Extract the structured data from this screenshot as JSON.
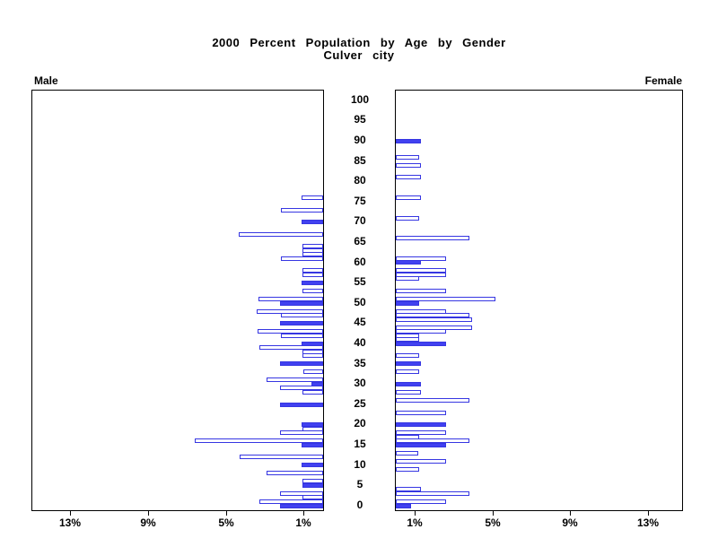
{
  "chart_data": {
    "type": "bar",
    "variant": "population-pyramid",
    "title_line1": "2000 Percent Population by Age by Gender",
    "title_line2": "Culver city",
    "left_panel_label": "Male",
    "right_panel_label": "Female",
    "age_axis": {
      "min": 0,
      "max": 100,
      "step": 5,
      "tick_labels": [
        "0",
        "5",
        "10",
        "15",
        "20",
        "25",
        "30",
        "35",
        "40",
        "45",
        "50",
        "55",
        "60",
        "65",
        "70",
        "75",
        "80",
        "85",
        "90",
        "95",
        "100"
      ]
    },
    "pct_axis": {
      "unit": "%",
      "ticks": [
        1,
        5,
        9,
        13
      ],
      "male_tick_labels": [
        "13%",
        "9%",
        "5%",
        "1%"
      ],
      "female_tick_labels": [
        "1%",
        "5%",
        "9%",
        "13%"
      ],
      "max_pct_shown": 15
    },
    "colors": {
      "bar_fill": "#4141f0",
      "bar_border": "#3636e2",
      "axis": "#000000",
      "background": "#ffffff"
    },
    "fill_rule": "bars at ages divisible by 5 are solid, others hollow",
    "series": [
      {
        "name": "Male",
        "side": "left",
        "points": [
          {
            "age": 0,
            "value": 2.2,
            "filled": true
          },
          {
            "age": 1,
            "value": 3.25,
            "filled": false
          },
          {
            "age": 2,
            "value": 1.05,
            "filled": false
          },
          {
            "age": 3,
            "value": 2.2,
            "filled": false
          },
          {
            "age": 5,
            "value": 1.05,
            "filled": true
          },
          {
            "age": 6,
            "value": 1.05,
            "filled": false
          },
          {
            "age": 8,
            "value": 2.9,
            "filled": false
          },
          {
            "age": 10,
            "value": 1.1,
            "filled": true
          },
          {
            "age": 12,
            "value": 4.3,
            "filled": false
          },
          {
            "age": 15,
            "value": 1.1,
            "filled": true
          },
          {
            "age": 16,
            "value": 6.6,
            "filled": false
          },
          {
            "age": 18,
            "value": 2.2,
            "filled": false
          },
          {
            "age": 19,
            "value": 1.05,
            "filled": false
          },
          {
            "age": 20,
            "value": 1.1,
            "filled": true
          },
          {
            "age": 25,
            "value": 2.2,
            "filled": true
          },
          {
            "age": 28,
            "value": 1.05,
            "filled": false
          },
          {
            "age": 29,
            "value": 2.2,
            "filled": false
          },
          {
            "age": 30,
            "value": 0.6,
            "filled": true
          },
          {
            "age": 31,
            "value": 2.9,
            "filled": false
          },
          {
            "age": 33,
            "value": 1.0,
            "filled": false
          },
          {
            "age": 35,
            "value": 2.2,
            "filled": true
          },
          {
            "age": 37,
            "value": 1.05,
            "filled": false
          },
          {
            "age": 38,
            "value": 1.05,
            "filled": false
          },
          {
            "age": 39,
            "value": 3.25,
            "filled": false
          },
          {
            "age": 40,
            "value": 1.1,
            "filled": true
          },
          {
            "age": 42,
            "value": 2.15,
            "filled": false
          },
          {
            "age": 43,
            "value": 3.35,
            "filled": false
          },
          {
            "age": 45,
            "value": 2.2,
            "filled": true
          },
          {
            "age": 47,
            "value": 2.15,
            "filled": false
          },
          {
            "age": 48,
            "value": 3.4,
            "filled": false
          },
          {
            "age": 50,
            "value": 2.2,
            "filled": true
          },
          {
            "age": 51,
            "value": 3.3,
            "filled": false
          },
          {
            "age": 53,
            "value": 1.05,
            "filled": false
          },
          {
            "age": 55,
            "value": 1.1,
            "filled": true
          },
          {
            "age": 57,
            "value": 1.05,
            "filled": false
          },
          {
            "age": 58,
            "value": 1.05,
            "filled": false
          },
          {
            "age": 61,
            "value": 2.15,
            "filled": false
          },
          {
            "age": 62,
            "value": 1.05,
            "filled": false
          },
          {
            "age": 63,
            "value": 1.05,
            "filled": false
          },
          {
            "age": 64,
            "value": 1.05,
            "filled": false
          },
          {
            "age": 67,
            "value": 4.35,
            "filled": false
          },
          {
            "age": 70,
            "value": 1.1,
            "filled": true
          },
          {
            "age": 73,
            "value": 2.15,
            "filled": false
          },
          {
            "age": 76,
            "value": 1.1,
            "filled": false
          }
        ]
      },
      {
        "name": "Female",
        "side": "right",
        "points": [
          {
            "age": 0,
            "value": 0.8,
            "filled": true
          },
          {
            "age": 1,
            "value": 2.6,
            "filled": false
          },
          {
            "age": 3,
            "value": 3.8,
            "filled": false
          },
          {
            "age": 4,
            "value": 1.3,
            "filled": false
          },
          {
            "age": 9,
            "value": 1.2,
            "filled": false
          },
          {
            "age": 11,
            "value": 2.6,
            "filled": false
          },
          {
            "age": 13,
            "value": 1.15,
            "filled": false
          },
          {
            "age": 15,
            "value": 2.6,
            "filled": true
          },
          {
            "age": 16,
            "value": 3.8,
            "filled": false
          },
          {
            "age": 17,
            "value": 1.2,
            "filled": false
          },
          {
            "age": 18,
            "value": 2.6,
            "filled": false
          },
          {
            "age": 20,
            "value": 2.6,
            "filled": true
          },
          {
            "age": 23,
            "value": 2.6,
            "filled": false
          },
          {
            "age": 26,
            "value": 3.8,
            "filled": false
          },
          {
            "age": 28,
            "value": 1.3,
            "filled": false
          },
          {
            "age": 30,
            "value": 1.3,
            "filled": true
          },
          {
            "age": 33,
            "value": 1.2,
            "filled": false
          },
          {
            "age": 35,
            "value": 1.3,
            "filled": true
          },
          {
            "age": 37,
            "value": 1.2,
            "filled": false
          },
          {
            "age": 40,
            "value": 2.6,
            "filled": true
          },
          {
            "age": 41,
            "value": 1.2,
            "filled": false
          },
          {
            "age": 42,
            "value": 1.2,
            "filled": false
          },
          {
            "age": 43,
            "value": 2.6,
            "filled": false
          },
          {
            "age": 44,
            "value": 3.9,
            "filled": false
          },
          {
            "age": 46,
            "value": 3.9,
            "filled": false
          },
          {
            "age": 47,
            "value": 3.8,
            "filled": false
          },
          {
            "age": 48,
            "value": 2.6,
            "filled": false
          },
          {
            "age": 50,
            "value": 1.2,
            "filled": true
          },
          {
            "age": 51,
            "value": 5.1,
            "filled": false
          },
          {
            "age": 53,
            "value": 2.6,
            "filled": false
          },
          {
            "age": 56,
            "value": 1.2,
            "filled": false
          },
          {
            "age": 57,
            "value": 2.6,
            "filled": false
          },
          {
            "age": 58,
            "value": 2.6,
            "filled": false
          },
          {
            "age": 60,
            "value": 1.3,
            "filled": true
          },
          {
            "age": 61,
            "value": 2.6,
            "filled": false
          },
          {
            "age": 66,
            "value": 3.8,
            "filled": false
          },
          {
            "age": 71,
            "value": 1.2,
            "filled": false
          },
          {
            "age": 76,
            "value": 1.3,
            "filled": false
          },
          {
            "age": 81,
            "value": 1.3,
            "filled": false
          },
          {
            "age": 84,
            "value": 1.3,
            "filled": false
          },
          {
            "age": 86,
            "value": 1.2,
            "filled": false
          },
          {
            "age": 90,
            "value": 1.3,
            "filled": true
          }
        ]
      }
    ]
  }
}
